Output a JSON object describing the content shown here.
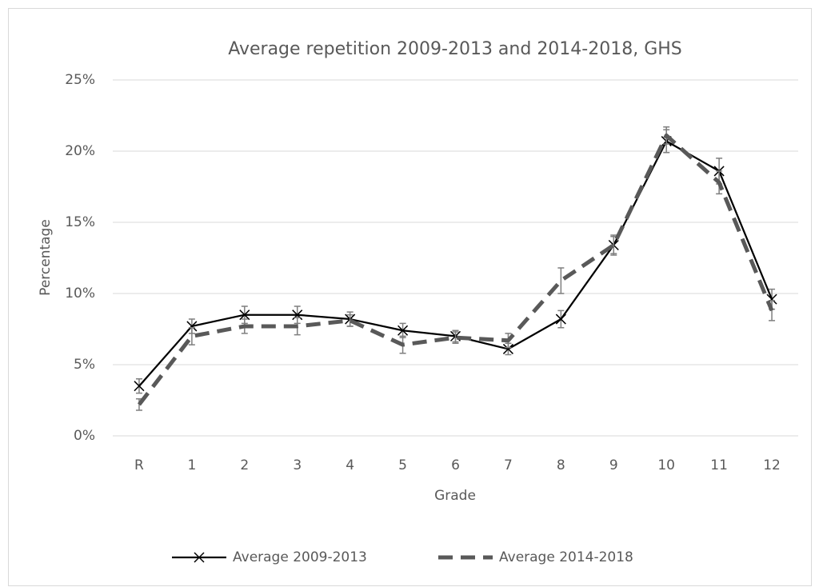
{
  "chart_data": {
    "type": "line",
    "title": "Average repetition 2009-2013 and 2014-2018, GHS",
    "x_label": "Grade",
    "y_label": "Percentage",
    "categories": [
      "R",
      "1",
      "2",
      "3",
      "4",
      "5",
      "6",
      "7",
      "8",
      "9",
      "10",
      "11",
      "12"
    ],
    "series": [
      {
        "name": "Average 2009-2013",
        "color": "#000000",
        "dash": false,
        "marker": "x",
        "values": [
          3.5,
          7.7,
          8.5,
          8.5,
          8.2,
          7.4,
          7.0,
          6.1,
          8.2,
          13.4,
          20.7,
          18.6,
          9.6
        ],
        "errors": [
          0.5,
          0.5,
          0.6,
          0.6,
          0.5,
          0.5,
          0.4,
          0.4,
          0.6,
          0.7,
          0.8,
          0.9,
          0.7
        ]
      },
      {
        "name": "Average 2014-2018",
        "color": "#595959",
        "dash": true,
        "marker": "none",
        "values": [
          2.2,
          7.0,
          7.7,
          7.7,
          8.1,
          6.4,
          6.9,
          6.7,
          10.9,
          13.4,
          21.1,
          17.8,
          8.8
        ],
        "errors": [
          0.4,
          0.6,
          0.5,
          0.6,
          0.4,
          0.6,
          0.4,
          0.5,
          0.9,
          0.6,
          0.6,
          0.8,
          0.7
        ]
      }
    ],
    "error_bar_color": "#7f7f7f",
    "ylim": [
      0,
      25
    ],
    "yticks": [
      {
        "value": 0,
        "label": "0%"
      },
      {
        "value": 5,
        "label": "5%"
      },
      {
        "value": 10,
        "label": "10%"
      },
      {
        "value": 15,
        "label": "15%"
      },
      {
        "value": 20,
        "label": "20%"
      },
      {
        "value": 25,
        "label": "25%"
      }
    ],
    "grid": true,
    "legend": "bottom"
  }
}
